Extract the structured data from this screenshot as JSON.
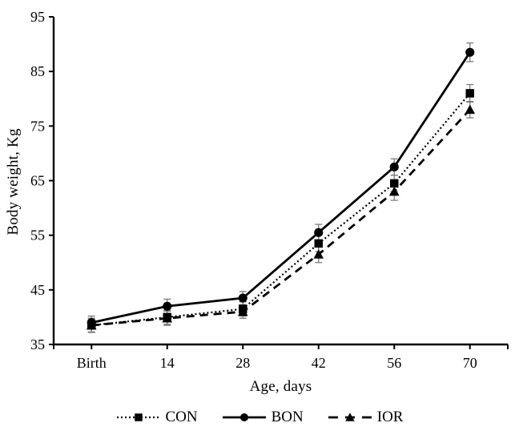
{
  "figure": {
    "background": "#ffffff",
    "axis_color": "#000000",
    "series_color": "#000000",
    "error_bar_color": "#7a7a7a"
  },
  "chart_data": {
    "type": "line",
    "title": "",
    "xlabel": "Age, days",
    "ylabel": "Body weight, Kg",
    "x_categories": [
      "Birth",
      "14",
      "28",
      "42",
      "56",
      "70"
    ],
    "ylim": [
      35,
      95
    ],
    "yticks": [
      35,
      45,
      55,
      65,
      75,
      85,
      95
    ],
    "grid": false,
    "legend_position": "bottom",
    "error_bars": true,
    "series": [
      {
        "name": "CON",
        "marker": "square",
        "line_style": "dotted",
        "color": "#000000",
        "values": [
          38.5,
          40,
          41.5,
          53.5,
          64.5,
          81
        ],
        "errors": [
          1.3,
          1.3,
          1.3,
          1.5,
          1.5,
          1.6
        ]
      },
      {
        "name": "BON",
        "marker": "circle",
        "line_style": "solid",
        "color": "#000000",
        "values": [
          39,
          42,
          43.5,
          55.5,
          67.5,
          88.5
        ],
        "errors": [
          1.2,
          1.3,
          1.2,
          1.5,
          1.5,
          1.7
        ]
      },
      {
        "name": "IOR",
        "marker": "triangle",
        "line_style": "dashed",
        "color": "#000000",
        "values": [
          38.5,
          39.8,
          41,
          51.5,
          63,
          78
        ],
        "errors": [
          1.2,
          1.3,
          1.2,
          1.5,
          1.6,
          1.5
        ]
      }
    ]
  }
}
